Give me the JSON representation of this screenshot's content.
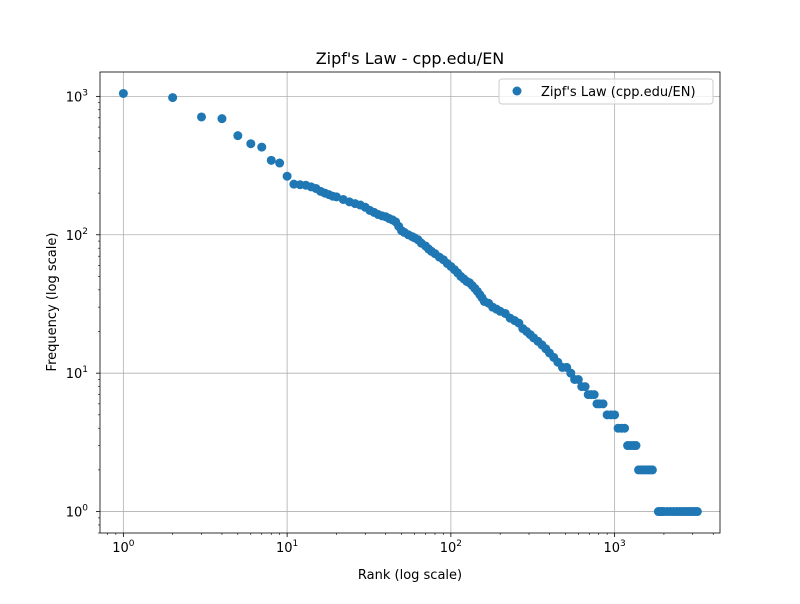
{
  "chart_data": {
    "type": "scatter",
    "title": "Zipf's Law - cpp.edu/EN",
    "xlabel": "Rank (log scale)",
    "ylabel": "Frequency (log scale)",
    "xscale": "log",
    "yscale": "log",
    "xlim": [
      0.72,
      4400
    ],
    "ylim": [
      0.7,
      1500
    ],
    "grid": true,
    "legend_position": "top-right",
    "marker_color": "#1f77b4",
    "x_ticks": [
      {
        "base": "10",
        "exp": "0",
        "value": 1
      },
      {
        "base": "10",
        "exp": "1",
        "value": 10
      },
      {
        "base": "10",
        "exp": "2",
        "value": 100
      },
      {
        "base": "10",
        "exp": "3",
        "value": 1000
      }
    ],
    "y_ticks": [
      {
        "base": "10",
        "exp": "0",
        "value": 1
      },
      {
        "base": "10",
        "exp": "1",
        "value": 10
      },
      {
        "base": "10",
        "exp": "2",
        "value": 100
      },
      {
        "base": "10",
        "exp": "3",
        "value": 1000
      }
    ],
    "series": [
      {
        "name": "Zipf's Law (cpp.edu/EN)",
        "points": [
          [
            1,
            1050
          ],
          [
            2,
            980
          ],
          [
            3,
            710
          ],
          [
            4,
            690
          ],
          [
            5,
            520
          ],
          [
            6,
            455
          ],
          [
            7,
            430
          ],
          [
            8,
            345
          ],
          [
            9,
            330
          ],
          [
            10,
            265
          ],
          [
            11,
            232
          ],
          [
            12,
            230
          ],
          [
            13,
            228
          ],
          [
            14,
            222
          ],
          [
            15,
            216
          ],
          [
            16,
            206
          ],
          [
            17,
            200
          ],
          [
            18,
            195
          ],
          [
            19,
            190
          ],
          [
            20,
            188
          ],
          [
            22,
            180
          ],
          [
            24,
            173
          ],
          [
            26,
            168
          ],
          [
            28,
            164
          ],
          [
            30,
            158
          ],
          [
            32,
            150
          ],
          [
            34,
            145
          ],
          [
            36,
            140
          ],
          [
            38,
            137
          ],
          [
            40,
            135
          ],
          [
            42,
            131
          ],
          [
            44,
            128
          ],
          [
            46,
            124
          ],
          [
            48,
            115
          ],
          [
            50,
            107
          ],
          [
            52,
            104
          ],
          [
            55,
            100
          ],
          [
            58,
            97
          ],
          [
            60,
            95
          ],
          [
            63,
            92
          ],
          [
            66,
            87
          ],
          [
            70,
            83
          ],
          [
            73,
            79
          ],
          [
            76,
            76
          ],
          [
            80,
            73
          ],
          [
            85,
            69
          ],
          [
            90,
            66
          ],
          [
            95,
            62
          ],
          [
            100,
            59
          ],
          [
            105,
            56
          ],
          [
            110,
            53
          ],
          [
            115,
            50
          ],
          [
            120,
            48
          ],
          [
            125,
            46
          ],
          [
            130,
            45
          ],
          [
            135,
            43
          ],
          [
            140,
            41
          ],
          [
            145,
            39
          ],
          [
            150,
            37
          ],
          [
            155,
            35
          ],
          [
            160,
            33
          ],
          [
            170,
            32
          ],
          [
            180,
            30
          ],
          [
            190,
            29
          ],
          [
            200,
            28
          ],
          [
            215,
            27
          ],
          [
            230,
            25
          ],
          [
            245,
            24
          ],
          [
            260,
            23
          ],
          [
            275,
            21
          ],
          [
            290,
            20
          ],
          [
            305,
            19
          ],
          [
            320,
            18
          ],
          [
            340,
            17
          ],
          [
            360,
            16
          ],
          [
            380,
            15
          ],
          [
            400,
            14
          ],
          [
            425,
            13
          ],
          [
            450,
            12
          ],
          [
            480,
            11
          ],
          [
            510,
            11
          ],
          [
            540,
            10
          ],
          [
            570,
            9
          ],
          [
            600,
            9
          ],
          [
            630,
            8
          ],
          [
            660,
            8
          ],
          [
            690,
            7
          ],
          [
            720,
            7
          ],
          [
            750,
            7
          ],
          [
            780,
            6
          ],
          [
            810,
            6
          ],
          [
            850,
            6
          ],
          [
            900,
            5
          ],
          [
            950,
            5
          ],
          [
            1000,
            5
          ],
          [
            1050,
            4
          ],
          [
            1100,
            4
          ],
          [
            1150,
            4
          ],
          [
            1200,
            3
          ],
          [
            1250,
            3
          ],
          [
            1300,
            3
          ],
          [
            1350,
            3
          ],
          [
            1400,
            2
          ],
          [
            1450,
            2
          ],
          [
            1500,
            2
          ],
          [
            1550,
            2
          ],
          [
            1600,
            2
          ],
          [
            1650,
            2
          ],
          [
            1700,
            2
          ],
          [
            1850,
            1
          ],
          [
            1900,
            1
          ],
          [
            1950,
            1
          ],
          [
            2000,
            1
          ],
          [
            2100,
            1
          ],
          [
            2200,
            1
          ],
          [
            2300,
            1
          ],
          [
            2400,
            1
          ],
          [
            2500,
            1
          ],
          [
            2600,
            1
          ],
          [
            2700,
            1
          ],
          [
            2800,
            1
          ],
          [
            2900,
            1
          ],
          [
            3000,
            1
          ],
          [
            3100,
            1
          ],
          [
            3200,
            1
          ]
        ]
      }
    ]
  }
}
